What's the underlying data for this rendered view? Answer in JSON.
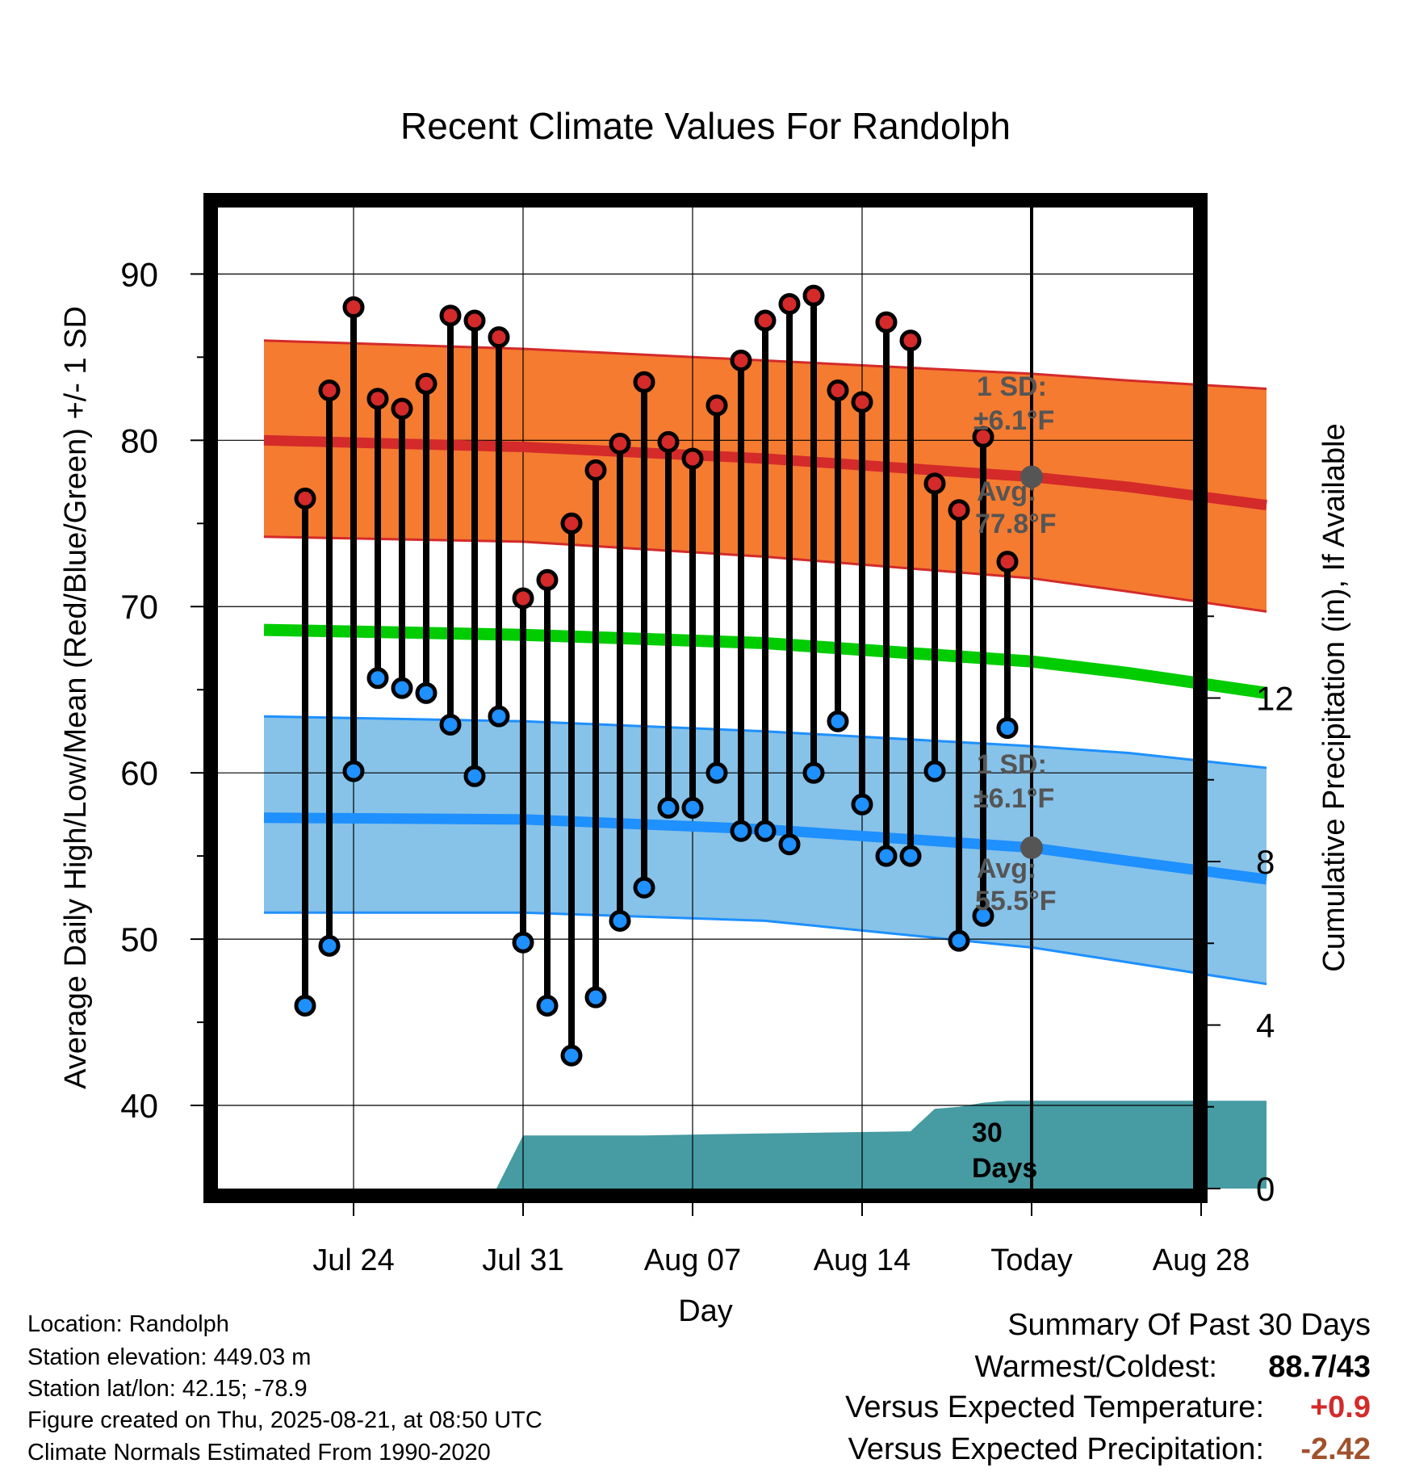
{
  "chart_data": {
    "type": "line",
    "title": "Recent Climate Values For Randolph",
    "xlabel": "Day",
    "ylabel": "Average Daily High/Low/Mean (Red/Blue/Green) +/- 1 SD",
    "y2label": "Cumulative Precipitation (in), If Available",
    "ylim": [
      35,
      94
    ],
    "y2lim": [
      0,
      24
    ],
    "yticks": [
      40,
      50,
      60,
      70,
      80,
      90
    ],
    "y2ticks": [
      0,
      4,
      8,
      12
    ],
    "xlim": [
      -1.8,
      40.7
    ],
    "xticks": [
      {
        "day": 3,
        "label": "Jul 24"
      },
      {
        "day": 10,
        "label": "Jul 31"
      },
      {
        "day": 17,
        "label": "Aug 07"
      },
      {
        "day": 24,
        "label": "Aug 14"
      },
      {
        "day": 31,
        "label": "Today"
      },
      {
        "day": 38,
        "label": "Aug 28"
      }
    ],
    "today_day": 31,
    "grid": true,
    "colors": {
      "high_band": "#f47b30",
      "high_line": "#d42a2a",
      "low_band": "#87c2e8",
      "low_line": "#1e90ff",
      "mean_line": "#00cc00",
      "precip": "#479ba3",
      "high_marker": "#d42a2a",
      "low_marker": "#1e90ff",
      "avg_marker": "#555555",
      "annotation": "#555555"
    },
    "normals": {
      "x": [
        -0.7,
        10,
        20,
        31,
        35,
        40.7
      ],
      "high_avg": [
        80.0,
        79.6,
        78.9,
        77.8,
        77.2,
        76.1
      ],
      "high_upper": [
        86.0,
        85.5,
        84.8,
        84.0,
        83.6,
        83.1
      ],
      "high_lower": [
        74.2,
        73.9,
        73.0,
        71.7,
        70.9,
        69.7
      ],
      "mean": [
        68.6,
        68.3,
        67.8,
        66.7,
        66.0,
        64.8
      ],
      "low_avg": [
        57.3,
        57.2,
        56.6,
        55.5,
        54.7,
        53.6
      ],
      "low_upper": [
        63.4,
        63.1,
        62.5,
        61.6,
        61.2,
        60.3
      ],
      "low_lower": [
        51.6,
        51.6,
        51.1,
        49.5,
        48.6,
        47.3
      ]
    },
    "series": [
      {
        "name": "Daily High",
        "x": [
          1,
          2,
          3,
          4,
          5,
          6,
          7,
          8,
          9,
          10,
          11,
          12,
          13,
          14,
          15,
          16,
          17,
          18,
          19,
          20,
          21,
          22,
          23,
          24,
          25,
          26,
          27,
          28,
          29,
          30
        ],
        "values": [
          76.5,
          83.0,
          88.0,
          82.5,
          81.9,
          83.4,
          87.5,
          87.2,
          86.2,
          70.5,
          71.6,
          75.0,
          78.2,
          79.8,
          83.5,
          79.9,
          78.9,
          82.1,
          84.8,
          87.2,
          88.2,
          88.7,
          83.0,
          82.3,
          87.1,
          86.0,
          77.4,
          75.8,
          80.2,
          72.7
        ]
      },
      {
        "name": "Daily Low",
        "x": [
          1,
          2,
          3,
          4,
          5,
          6,
          7,
          8,
          9,
          10,
          11,
          12,
          13,
          14,
          15,
          16,
          17,
          18,
          19,
          20,
          21,
          22,
          23,
          24,
          25,
          26,
          27,
          28,
          29,
          30
        ],
        "values": [
          46.0,
          49.6,
          60.1,
          65.7,
          65.1,
          64.8,
          62.9,
          59.8,
          63.4,
          49.8,
          46.0,
          43.0,
          46.5,
          51.1,
          53.1,
          57.9,
          57.9,
          60.0,
          56.5,
          56.5,
          55.7,
          60.0,
          63.1,
          58.1,
          55.0,
          55.0,
          60.1,
          49.9,
          51.4,
          62.7
        ]
      },
      {
        "name": "Cumulative Precipitation",
        "x": [
          8.9,
          10,
          15,
          20,
          26,
          27,
          28,
          29,
          30,
          40.7
        ],
        "values": [
          0,
          1.3,
          1.3,
          1.35,
          1.4,
          1.95,
          2.0,
          2.1,
          2.15,
          2.15
        ]
      }
    ],
    "annotations": {
      "high_sd_label": "1 SD:",
      "high_sd_value": "±6.1°F",
      "high_avg_label": "Avg:",
      "high_avg_value": "77.8°F",
      "low_sd_label": "1 SD:",
      "low_sd_value": "±6.1°F",
      "low_avg_label": "Avg:",
      "low_avg_value": "55.5°F",
      "days_label_1": "30",
      "days_label_2": "Days"
    }
  },
  "info": {
    "location": "Location: Randolph",
    "elevation": "Station elevation: 449.03 m",
    "latlon": "Station lat/lon: 42.15; -78.9",
    "created": "Figure created on Thu, 2025-08-21, at 08:50 UTC",
    "normals": "Climate Normals Estimated From 1990-2020"
  },
  "summary": {
    "title": "Summary Of Past 30 Days",
    "warmest_label": "Warmest/Coldest:",
    "warmest_value": "88.7/43",
    "temp_label": "Versus Expected Temperature:",
    "temp_value": "+0.9",
    "temp_color": "#d42a2a",
    "precip_label": "Versus Expected Precipitation:",
    "precip_value": "-2.42",
    "precip_color": "#a0522d"
  }
}
